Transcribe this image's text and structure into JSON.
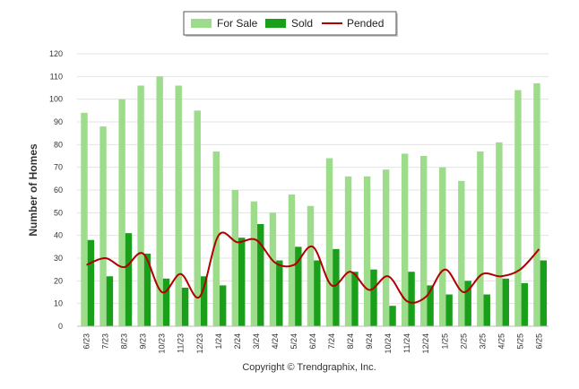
{
  "chart_data": {
    "type": "bar",
    "title": "",
    "xlabel": "",
    "ylabel": "Number of Homes",
    "ylim": [
      0,
      120
    ],
    "yticks": [
      0,
      10,
      20,
      30,
      40,
      50,
      60,
      70,
      80,
      90,
      100,
      110,
      120
    ],
    "grid": true,
    "legend_position": "top-center",
    "categories": [
      "6/23",
      "7/23",
      "8/23",
      "9/23",
      "10/23",
      "11/23",
      "12/23",
      "1/24",
      "2/24",
      "3/24",
      "4/24",
      "5/24",
      "6/24",
      "7/24",
      "8/24",
      "9/24",
      "10/24",
      "11/24",
      "12/24",
      "1/25",
      "2/25",
      "3/25",
      "4/25",
      "5/25",
      "6/25"
    ],
    "series": [
      {
        "name": "For Sale",
        "kind": "bar",
        "color": "#9ddc8a",
        "values": [
          94,
          88,
          100,
          106,
          110,
          106,
          95,
          77,
          60,
          55,
          50,
          58,
          53,
          74,
          66,
          66,
          69,
          76,
          75,
          70,
          64,
          77,
          81,
          104,
          107
        ]
      },
      {
        "name": "Sold",
        "kind": "bar",
        "color": "#1a9f1a",
        "values": [
          38,
          22,
          41,
          32,
          21,
          17,
          22,
          18,
          39,
          45,
          29,
          35,
          29,
          34,
          24,
          25,
          9,
          24,
          18,
          14,
          20,
          14,
          21,
          19,
          29
        ]
      },
      {
        "name": "Pended",
        "kind": "line",
        "color": "#b00000",
        "values": [
          27,
          30,
          26,
          32,
          15,
          23,
          13,
          40,
          37,
          38,
          28,
          27,
          35,
          18,
          24,
          16,
          22,
          11,
          13,
          25,
          15,
          23,
          22,
          25,
          34
        ]
      }
    ]
  },
  "caption": "Copyright © Trendgraphix, Inc."
}
